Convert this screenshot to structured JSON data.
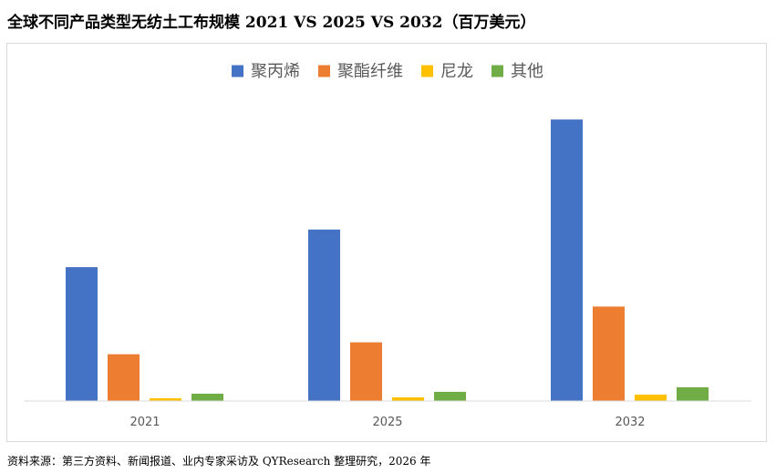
{
  "title": "全球不同产品类型无纺土工布规模 2021 VS 2025 VS 2032（百万美元）",
  "source": "资料来源：第三方资料、新闻报道、业内专家采访及 QYResearch 整理研究，2026 年",
  "chart_data": {
    "type": "bar",
    "categories": [
      "2021",
      "2025",
      "2032"
    ],
    "series": [
      {
        "name": "聚丙烯",
        "color": "#4472C4",
        "values": [
          146,
          187,
          307
        ]
      },
      {
        "name": "聚酯纤维",
        "color": "#ED7D31",
        "values": [
          51,
          64,
          103
        ]
      },
      {
        "name": "尼龙",
        "color": "#FFC000",
        "values": [
          3,
          4,
          7
        ]
      },
      {
        "name": "其他",
        "color": "#70AD47",
        "values": [
          8,
          10,
          15
        ]
      }
    ],
    "ylim": [
      0,
      330
    ],
    "grid": false,
    "legend": "top-center",
    "xlabel": "",
    "ylabel": ""
  }
}
